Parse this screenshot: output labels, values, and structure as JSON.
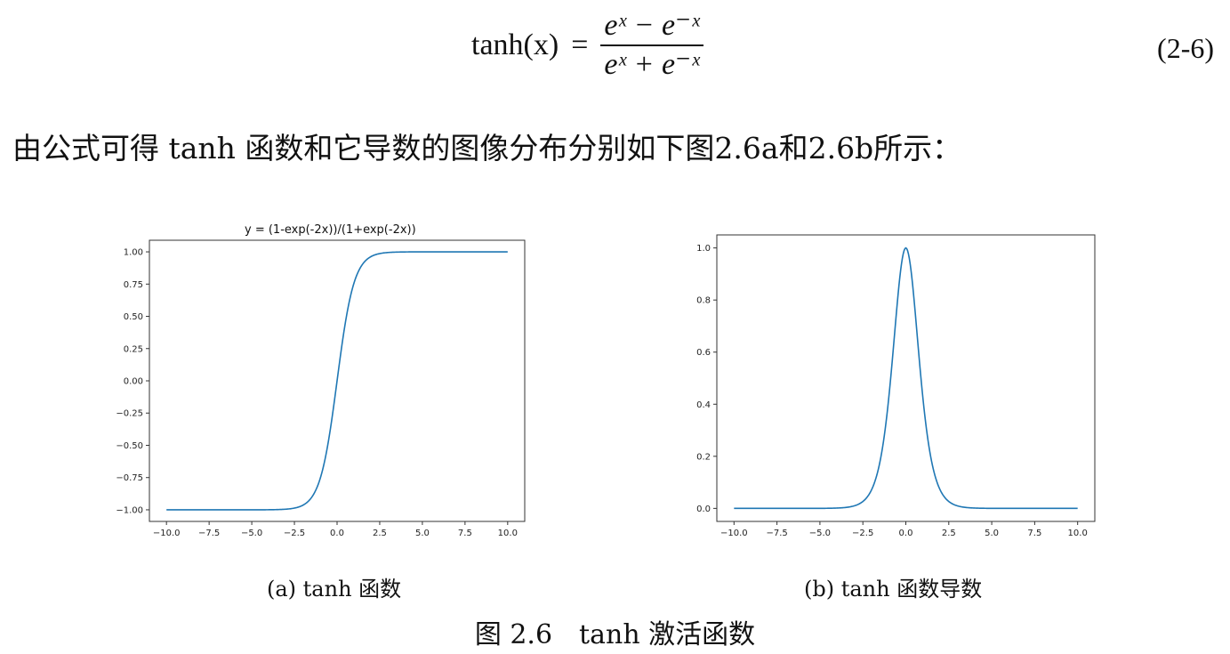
{
  "equation": {
    "lhs": "tanh(x)",
    "equals": "=",
    "numerator": "eˣ − e⁻ˣ",
    "denominator": "eˣ + e⁻ˣ",
    "number": "(2-6)"
  },
  "sentence": "由公式可得 tanh 函数和它导数的图像分布分别如下图2.6a和2.6b所示：",
  "chart_data": [
    {
      "type": "line",
      "title": "y = (1-exp(-2x))/(1+exp(-2x))",
      "function": "tanh",
      "x_range": [
        -10,
        10
      ],
      "xlim": [
        -10,
        10
      ],
      "ylim": [
        -1,
        1
      ],
      "xticks": [
        "−10.0",
        "−7.5",
        "−5.0",
        "−2.5",
        "0.0",
        "2.5",
        "5.0",
        "7.5",
        "10.0"
      ],
      "yticks": [
        "1.00",
        "0.75",
        "0.50",
        "0.25",
        "0.00",
        "−0.25",
        "−0.50",
        "−0.75",
        "−1.00"
      ],
      "xtick_values": [
        -10,
        -7.5,
        -5,
        -2.5,
        0,
        2.5,
        5,
        7.5,
        10
      ],
      "ytick_values": [
        1,
        0.75,
        0.5,
        0.25,
        0,
        -0.25,
        -0.5,
        -0.75,
        -1
      ],
      "line_color": "#1f77b4",
      "caption": "(a) tanh 函数"
    },
    {
      "type": "line",
      "title": "",
      "function": "tanh_derivative",
      "x_range": [
        -10,
        10
      ],
      "xlim": [
        -10,
        10
      ],
      "ylim": [
        0,
        1
      ],
      "xticks": [
        "−10.0",
        "−7.5",
        "−5.0",
        "−2.5",
        "0.0",
        "2.5",
        "5.0",
        "7.5",
        "10.0"
      ],
      "yticks": [
        "1.0",
        "0.8",
        "0.6",
        "0.4",
        "0.2",
        "0.0"
      ],
      "xtick_values": [
        -10,
        -7.5,
        -5,
        -2.5,
        0,
        2.5,
        5,
        7.5,
        10
      ],
      "ytick_values": [
        1,
        0.8,
        0.6,
        0.4,
        0.2,
        0
      ],
      "line_color": "#1f77b4",
      "caption": "(b) tanh 函数导数"
    }
  ],
  "figure_caption": "图 2.6　tanh 激活函数"
}
